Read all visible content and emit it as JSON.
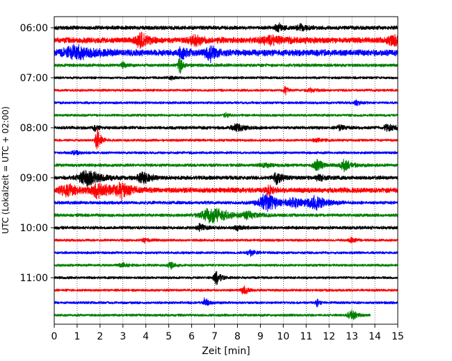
{
  "chart_data": {
    "type": "line",
    "title": "",
    "xlabel": "Zeit  [min]",
    "ylabel": "UTC (Lokalzeit = UTC + 02:00)",
    "xlim": [
      0,
      15
    ],
    "x_ticks": [
      0,
      1,
      2,
      3,
      4,
      5,
      6,
      7,
      8,
      9,
      10,
      11,
      12,
      13,
      14,
      15
    ],
    "y_ticks": [
      {
        "label": "06:00",
        "hour": 6.0
      },
      {
        "label": "07:00",
        "hour": 7.0
      },
      {
        "label": "08:00",
        "hour": 8.0
      },
      {
        "label": "09:00",
        "hour": 9.0
      },
      {
        "label": "10:00",
        "hour": 10.0
      },
      {
        "label": "11:00",
        "hour": 11.0
      }
    ],
    "row_interval_minutes": 15,
    "grid": {
      "x": "dotted-vertical",
      "y": "none"
    },
    "colors": [
      "#000000",
      "#ff0000",
      "#0000ff",
      "#008000"
    ],
    "rows": [
      {
        "start": "06:00",
        "color": "#000000",
        "base": 3.0,
        "end_min": 15,
        "events": [
          {
            "t": 9.8,
            "a": 6,
            "w": 0.25
          },
          {
            "t": 10.8,
            "a": 5,
            "w": 0.3
          }
        ]
      },
      {
        "start": "06:15",
        "color": "#ff0000",
        "base": 4.5,
        "end_min": 15,
        "events": [
          {
            "t": 3.8,
            "a": 12,
            "w": 0.35
          },
          {
            "t": 6.2,
            "a": 6,
            "w": 0.5
          },
          {
            "t": 9.5,
            "a": 5,
            "w": 0.8
          },
          {
            "t": 14.8,
            "a": 8,
            "w": 0.35
          }
        ]
      },
      {
        "start": "06:30",
        "color": "#0000ff",
        "base": 5.0,
        "end_min": 15,
        "events": [
          {
            "t": 1.0,
            "a": 9,
            "w": 0.9
          },
          {
            "t": 6.8,
            "a": 11,
            "w": 0.35
          },
          {
            "t": 5.6,
            "a": 7,
            "w": 0.3
          }
        ]
      },
      {
        "start": "06:45",
        "color": "#008000",
        "base": 2.5,
        "end_min": 15,
        "events": [
          {
            "t": 5.5,
            "a": 14,
            "w": 0.15
          },
          {
            "t": 3.0,
            "a": 4,
            "w": 0.2
          }
        ]
      },
      {
        "start": "07:00",
        "color": "#000000",
        "base": 2.0,
        "end_min": 15,
        "events": [
          {
            "t": 5.1,
            "a": 3,
            "w": 0.2
          }
        ]
      },
      {
        "start": "07:15",
        "color": "#ff0000",
        "base": 2.0,
        "end_min": 15,
        "events": [
          {
            "t": 10.1,
            "a": 6,
            "w": 0.15
          },
          {
            "t": 11.2,
            "a": 3,
            "w": 0.3
          }
        ]
      },
      {
        "start": "07:30",
        "color": "#0000ff",
        "base": 2.0,
        "end_min": 15,
        "events": [
          {
            "t": 13.2,
            "a": 4,
            "w": 0.2
          }
        ]
      },
      {
        "start": "07:45",
        "color": "#008000",
        "base": 2.0,
        "end_min": 15,
        "events": [
          {
            "t": 7.5,
            "a": 4,
            "w": 0.15
          }
        ]
      },
      {
        "start": "08:00",
        "color": "#000000",
        "base": 2.5,
        "end_min": 15,
        "events": [
          {
            "t": 1.8,
            "a": 6,
            "w": 0.15
          },
          {
            "t": 8.0,
            "a": 6,
            "w": 0.4
          },
          {
            "t": 14.6,
            "a": 6,
            "w": 0.3
          },
          {
            "t": 12.5,
            "a": 3,
            "w": 0.3
          }
        ]
      },
      {
        "start": "08:15",
        "color": "#ff0000",
        "base": 2.0,
        "end_min": 15,
        "events": [
          {
            "t": 1.9,
            "a": 16,
            "w": 0.2
          },
          {
            "t": 11.5,
            "a": 3,
            "w": 0.3
          }
        ]
      },
      {
        "start": "08:30",
        "color": "#0000ff",
        "base": 2.0,
        "end_min": 15,
        "events": [
          {
            "t": 0.9,
            "a": 3,
            "w": 0.3
          }
        ]
      },
      {
        "start": "08:45",
        "color": "#008000",
        "base": 2.5,
        "end_min": 15,
        "events": [
          {
            "t": 11.5,
            "a": 8,
            "w": 0.3
          },
          {
            "t": 12.7,
            "a": 9,
            "w": 0.3
          },
          {
            "t": 9.2,
            "a": 3,
            "w": 0.4
          }
        ]
      },
      {
        "start": "09:00",
        "color": "#000000",
        "base": 3.0,
        "end_min": 15,
        "events": [
          {
            "t": 1.5,
            "a": 12,
            "w": 0.7
          },
          {
            "t": 3.9,
            "a": 11,
            "w": 0.35
          },
          {
            "t": 9.7,
            "a": 10,
            "w": 0.3
          },
          {
            "t": 11.6,
            "a": 4,
            "w": 0.3
          }
        ]
      },
      {
        "start": "09:15",
        "color": "#ff0000",
        "base": 4.0,
        "end_min": 15,
        "events": [
          {
            "t": 0.6,
            "a": 8,
            "w": 0.7
          },
          {
            "t": 2.0,
            "a": 11,
            "w": 0.6
          },
          {
            "t": 3.0,
            "a": 10,
            "w": 0.5
          },
          {
            "t": 9.4,
            "a": 8,
            "w": 0.2
          }
        ]
      },
      {
        "start": "09:30",
        "color": "#0000ff",
        "base": 2.5,
        "end_min": 15,
        "events": [
          {
            "t": 9.3,
            "a": 14,
            "w": 0.7
          },
          {
            "t": 10.5,
            "a": 7,
            "w": 0.4
          },
          {
            "t": 11.4,
            "a": 10,
            "w": 0.6
          }
        ]
      },
      {
        "start": "09:45",
        "color": "#008000",
        "base": 2.5,
        "end_min": 15,
        "events": [
          {
            "t": 7.0,
            "a": 12,
            "w": 0.9
          },
          {
            "t": 8.5,
            "a": 4,
            "w": 0.4
          }
        ]
      },
      {
        "start": "10:00",
        "color": "#000000",
        "base": 2.5,
        "end_min": 15,
        "events": [
          {
            "t": 6.4,
            "a": 5,
            "w": 0.3
          },
          {
            "t": 8.0,
            "a": 3,
            "w": 0.3
          }
        ]
      },
      {
        "start": "10:15",
        "color": "#ff0000",
        "base": 2.0,
        "end_min": 15,
        "events": [
          {
            "t": 13.0,
            "a": 4,
            "w": 0.2
          },
          {
            "t": 4.0,
            "a": 3,
            "w": 0.3
          }
        ]
      },
      {
        "start": "10:30",
        "color": "#0000ff",
        "base": 2.0,
        "end_min": 15,
        "events": [
          {
            "t": 8.6,
            "a": 4,
            "w": 0.3
          }
        ]
      },
      {
        "start": "10:45",
        "color": "#008000",
        "base": 2.0,
        "end_min": 15,
        "events": [
          {
            "t": 5.1,
            "a": 5,
            "w": 0.2
          },
          {
            "t": 3.0,
            "a": 3,
            "w": 0.3
          }
        ]
      },
      {
        "start": "11:00",
        "color": "#000000",
        "base": 2.0,
        "end_min": 15,
        "events": [
          {
            "t": 7.1,
            "a": 11,
            "w": 0.2
          }
        ]
      },
      {
        "start": "11:15",
        "color": "#ff0000",
        "base": 2.0,
        "end_min": 15,
        "events": [
          {
            "t": 8.3,
            "a": 6,
            "w": 0.25
          }
        ]
      },
      {
        "start": "11:30",
        "color": "#0000ff",
        "base": 2.0,
        "end_min": 15,
        "events": [
          {
            "t": 6.6,
            "a": 7,
            "w": 0.2
          },
          {
            "t": 11.5,
            "a": 5,
            "w": 0.15
          }
        ]
      },
      {
        "start": "11:45",
        "color": "#008000",
        "base": 2.0,
        "end_min": 13.8,
        "events": [
          {
            "t": 13.0,
            "a": 7,
            "w": 0.3
          }
        ]
      }
    ]
  }
}
